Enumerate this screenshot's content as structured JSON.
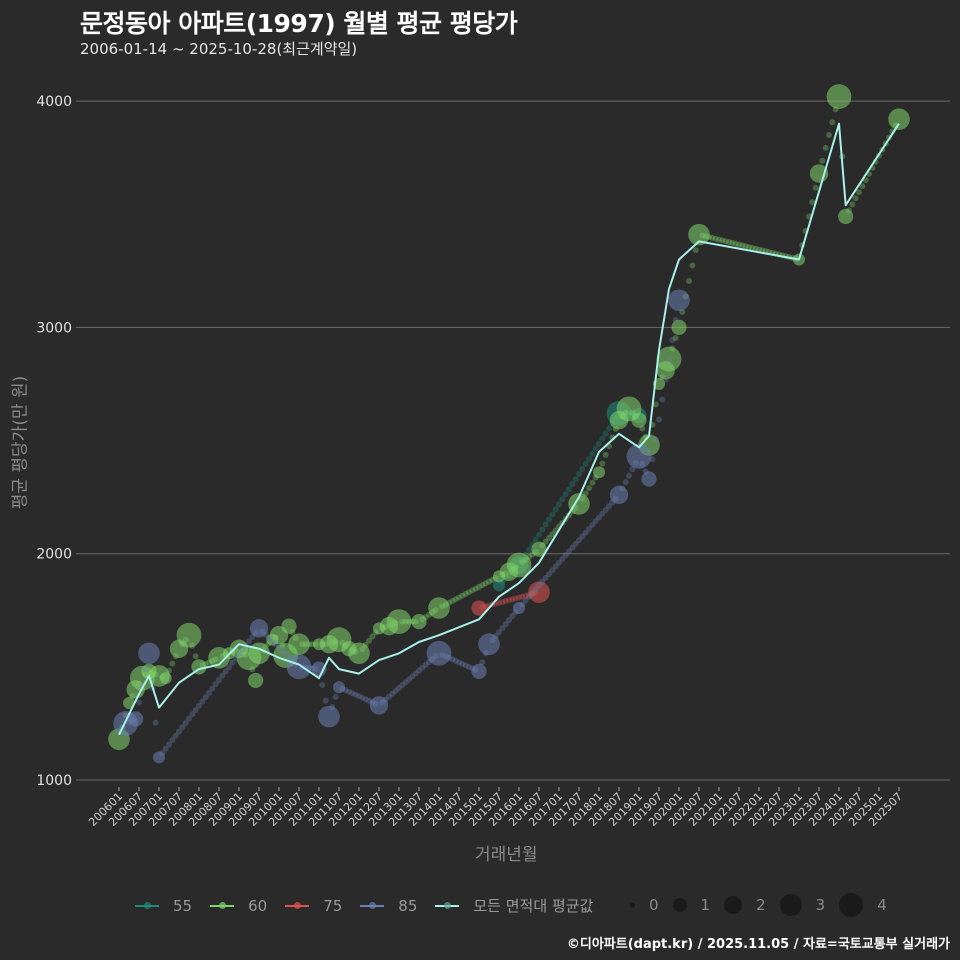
{
  "header": {
    "title": "문정동아 아파트(1997) 월별 평균 평당가",
    "subtitle": "2006-01-14 ~ 2025-10-28(최근계약일)"
  },
  "axes": {
    "ylabel": "평균 평당가(만 원)",
    "xlabel": "거래년월"
  },
  "caption": "©디아파트(dapt.kr) / 2025.11.05 / 자료=국토교통부 실거래가",
  "legend": {
    "series": [
      {
        "label": "55",
        "color": "#1f8a7a"
      },
      {
        "label": "60",
        "color": "#7fd46a"
      },
      {
        "label": "75",
        "color": "#e0524f"
      },
      {
        "label": "85",
        "color": "#6a80b0"
      },
      {
        "label": "모든 면적대 평균값",
        "color": "#a8f0e8"
      }
    ],
    "sizes": [
      {
        "label": "0",
        "size": 5
      },
      {
        "label": "1",
        "size": 14
      },
      {
        "label": "2",
        "size": 18
      },
      {
        "label": "3",
        "size": 22
      },
      {
        "label": "4",
        "size": 24
      }
    ]
  },
  "chart_data": {
    "type": "line",
    "title": "문정동아 아파트(1997) 월별 평균 평당가",
    "subtitle": "2006-01-14 ~ 2025-10-28(최근계약일)",
    "xlabel": "거래년월",
    "ylabel": "평균 평당가(만 원)",
    "ylim": [
      1000,
      4000
    ],
    "yticks": [
      1000,
      2000,
      3000,
      4000
    ],
    "xticks": [
      "200601",
      "200607",
      "200701",
      "200707",
      "200801",
      "200807",
      "200901",
      "200907",
      "201001",
      "201007",
      "201101",
      "201107",
      "201201",
      "201207",
      "201301",
      "201307",
      "201401",
      "201407",
      "201501",
      "201507",
      "201601",
      "201607",
      "201701",
      "201707",
      "201801",
      "201807",
      "201901",
      "201907",
      "202001",
      "202007",
      "202101",
      "202107",
      "202201",
      "202207",
      "202301",
      "202307",
      "202401",
      "202407",
      "202501",
      "202507"
    ],
    "grid": true,
    "legend_position": "bottom",
    "series": [
      {
        "name": "55",
        "color": "#1f8a7a",
        "points": [
          [
            "201507",
            1860
          ],
          [
            "201601",
            1950
          ],
          [
            "201807",
            2620
          ],
          [
            "201901",
            2610
          ]
        ]
      },
      {
        "name": "60",
        "color": "#7fd46a",
        "points": [
          [
            "200601",
            1180
          ],
          [
            "200604",
            1340
          ],
          [
            "200606",
            1400
          ],
          [
            "200608",
            1450
          ],
          [
            "200610",
            1480
          ],
          [
            "200701",
            1460
          ],
          [
            "200703",
            1450
          ],
          [
            "200707",
            1580
          ],
          [
            "200710",
            1640
          ],
          [
            "200801",
            1500
          ],
          [
            "200807",
            1540
          ],
          [
            "200810",
            1560
          ],
          [
            "200901",
            1580
          ],
          [
            "200904",
            1540
          ],
          [
            "200906",
            1440
          ],
          [
            "200907",
            1560
          ],
          [
            "200911",
            1620
          ],
          [
            "201001",
            1640
          ],
          [
            "201003",
            1550
          ],
          [
            "201004",
            1680
          ],
          [
            "201007",
            1600
          ],
          [
            "201101",
            1600
          ],
          [
            "201104",
            1600
          ],
          [
            "201107",
            1620
          ],
          [
            "201110",
            1580
          ],
          [
            "201201",
            1560
          ],
          [
            "201207",
            1670
          ],
          [
            "201210",
            1680
          ],
          [
            "201301",
            1700
          ],
          [
            "201307",
            1700
          ],
          [
            "201401",
            1760
          ],
          [
            "201507",
            1900
          ],
          [
            "201510",
            1920
          ],
          [
            "201601",
            1950
          ],
          [
            "201607",
            2020
          ],
          [
            "201707",
            2220
          ],
          [
            "201801",
            2360
          ],
          [
            "201807",
            2590
          ],
          [
            "201810",
            2640
          ],
          [
            "201901",
            2590
          ],
          [
            "201904",
            2480
          ],
          [
            "201907",
            2750
          ],
          [
            "201909",
            2810
          ],
          [
            "201910",
            2860
          ],
          [
            "202001",
            3000
          ],
          [
            "202007",
            3410
          ],
          [
            "202301",
            3300
          ],
          [
            "202307",
            3680
          ],
          [
            "202401",
            4020
          ],
          [
            "202403",
            3490
          ],
          [
            "202507",
            3920
          ]
        ]
      },
      {
        "name": "75",
        "color": "#e0524f",
        "points": [
          [
            "201501",
            1760
          ],
          [
            "201607",
            1830
          ]
        ]
      },
      {
        "name": "85",
        "color": "#6a80b0",
        "points": [
          [
            "200603",
            1250
          ],
          [
            "200606",
            1270
          ],
          [
            "200610",
            1560
          ],
          [
            "200701",
            1100
          ],
          [
            "200907",
            1670
          ],
          [
            "201007",
            1500
          ],
          [
            "201101",
            1490
          ],
          [
            "201104",
            1280
          ],
          [
            "201107",
            1410
          ],
          [
            "201207",
            1330
          ],
          [
            "201401",
            1560
          ],
          [
            "201501",
            1480
          ],
          [
            "201504",
            1600
          ],
          [
            "201601",
            1760
          ],
          [
            "201807",
            2260
          ],
          [
            "201901",
            2430
          ],
          [
            "201904",
            2330
          ],
          [
            "202001",
            3120
          ]
        ]
      },
      {
        "name": "모든 면적대 평균값",
        "color": "#a8f0e8",
        "points": [
          [
            "200601",
            1200
          ],
          [
            "200607",
            1380
          ],
          [
            "200610",
            1460
          ],
          [
            "200701",
            1320
          ],
          [
            "200707",
            1430
          ],
          [
            "200801",
            1490
          ],
          [
            "200807",
            1510
          ],
          [
            "200901",
            1600
          ],
          [
            "200907",
            1580
          ],
          [
            "201001",
            1540
          ],
          [
            "201007",
            1510
          ],
          [
            "201101",
            1450
          ],
          [
            "201104",
            1540
          ],
          [
            "201107",
            1490
          ],
          [
            "201201",
            1470
          ],
          [
            "201207",
            1530
          ],
          [
            "201301",
            1560
          ],
          [
            "201307",
            1610
          ],
          [
            "201401",
            1640
          ],
          [
            "201501",
            1710
          ],
          [
            "201507",
            1810
          ],
          [
            "201601",
            1870
          ],
          [
            "201607",
            1960
          ],
          [
            "201707",
            2250
          ],
          [
            "201801",
            2450
          ],
          [
            "201807",
            2530
          ],
          [
            "201901",
            2470
          ],
          [
            "201904",
            2520
          ],
          [
            "201907",
            2900
          ],
          [
            "201910",
            3170
          ],
          [
            "202001",
            3300
          ],
          [
            "202007",
            3380
          ],
          [
            "202301",
            3300
          ],
          [
            "202401",
            3900
          ],
          [
            "202403",
            3540
          ],
          [
            "202507",
            3900
          ]
        ]
      }
    ]
  }
}
